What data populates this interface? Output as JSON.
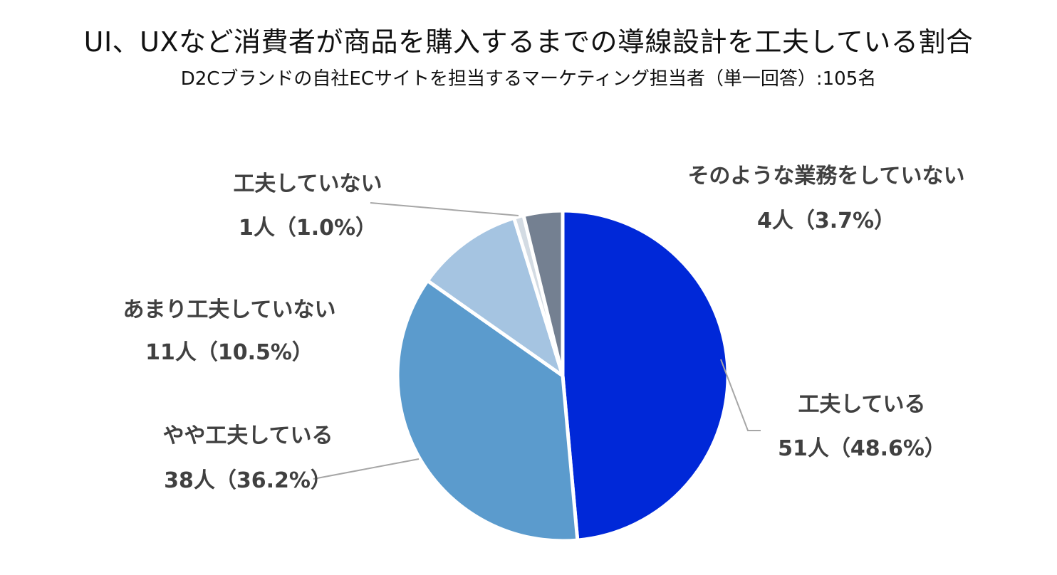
{
  "chart_data": {
    "type": "pie",
    "title": "UI、UXなど消費者が商品を購入するまでの導線設計を工夫している割合",
    "subtitle": "D2Cブランドの自社ECサイトを担当するマーケティング担当者（単一回答）:105名",
    "slices": [
      {
        "label": "工夫している",
        "count": 51,
        "count_label": "51人（48.6%）",
        "percent": 48.6,
        "color": "#0028d8"
      },
      {
        "label": "やや工夫している",
        "count": 38,
        "count_label": "38人（36.2%）",
        "percent": 36.2,
        "color": "#5b9bcd"
      },
      {
        "label": "あまり工夫していない",
        "count": 11,
        "count_label": "11人（10.5%）",
        "percent": 10.5,
        "color": "#a5c4e1"
      },
      {
        "label": "工夫していない",
        "count": 1,
        "count_label": "1人（1.0%）",
        "percent": 1.0,
        "color": "#d3dbe3"
      },
      {
        "label": "そのような業務をしていない",
        "count": 4,
        "count_label": "4人（3.7%）",
        "percent": 3.7,
        "color": "#748091"
      }
    ]
  }
}
